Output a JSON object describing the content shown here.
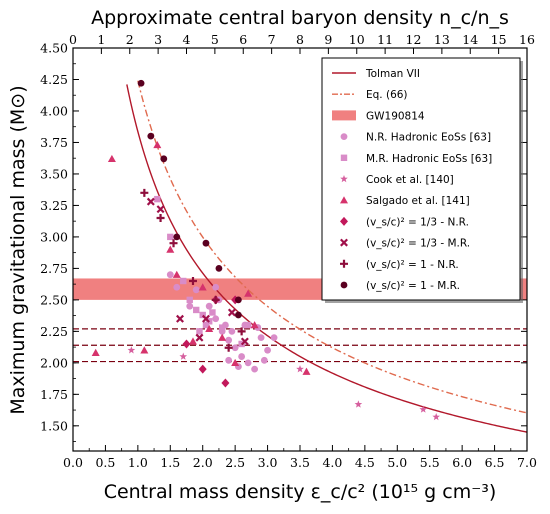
{
  "chart_data": {
    "type": "scatter",
    "xlabel": "Central mass density ε_c/c² (10¹⁵ g cm⁻³)",
    "ylabel": "Maximum gravitational mass (M⊙)",
    "top_xlabel": "Approximate central baryon density n_c/n_s",
    "xlim": [
      0.0,
      7.0
    ],
    "ylim": [
      1.3,
      4.5
    ],
    "top_xlim": [
      0,
      16
    ],
    "x_ticks": [
      "0.0",
      "0.5",
      "1.0",
      "1.5",
      "2.0",
      "2.5",
      "3.0",
      "3.5",
      "4.0",
      "4.5",
      "5.0",
      "5.5",
      "6.0",
      "6.5",
      "7.0"
    ],
    "y_ticks": [
      "1.50",
      "1.75",
      "2.00",
      "2.25",
      "2.50",
      "2.75",
      "3.00",
      "3.25",
      "3.50",
      "3.75",
      "4.00",
      "4.25",
      "4.50"
    ],
    "top_ticks": [
      "0",
      "1",
      "2",
      "3",
      "4",
      "5",
      "6",
      "7",
      "8",
      "9",
      "10",
      "11",
      "12",
      "13",
      "14",
      "15",
      "16"
    ],
    "grid": false,
    "legend_position": "top-right",
    "colors": {
      "tolman": "#b2182b",
      "eq66": "#e06a4e",
      "gw_band": "#f08080",
      "nr_hadronic": "#d98cc8",
      "mr_hadronic": "#d98cc8",
      "cook": "#d65f9e",
      "salgado": "#d6336c",
      "d_nr_13": "#c2185b",
      "d_mr_13": "#a0104a",
      "d_nr_1": "#8e0e3c",
      "d_mr_1": "#5a0020",
      "hline": "#7a0010"
    },
    "legend": [
      {
        "key": "tolman",
        "label": "Tolman VII",
        "marker": "line"
      },
      {
        "key": "eq66",
        "label": "Eq. (66)",
        "marker": "dashdot"
      },
      {
        "key": "gw_band",
        "label": "GW190814",
        "marker": "band"
      },
      {
        "key": "nr_hadronic",
        "label": "N.R. Hadronic EoSs [63]",
        "marker": "circle"
      },
      {
        "key": "mr_hadronic",
        "label": "M.R. Hadronic EoSs [63]",
        "marker": "square"
      },
      {
        "key": "cook",
        "label": "Cook et al. [140]",
        "marker": "star"
      },
      {
        "key": "salgado",
        "label": "Salgado et al. [141]",
        "marker": "triangle"
      },
      {
        "key": "d_nr_13",
        "label": "(v_s/c)² = 1/3 - N.R.",
        "marker": "diamond"
      },
      {
        "key": "d_mr_13",
        "label": "(v_s/c)² = 1/3 - M.R.",
        "marker": "x"
      },
      {
        "key": "d_nr_1",
        "label": "(v_s/c)² = 1 - N.R.",
        "marker": "plus"
      },
      {
        "key": "d_mr_1",
        "label": "(v_s/c)² = 1 - M.R.",
        "marker": "circle"
      }
    ],
    "gw190814_band": [
      2.5,
      2.67
    ],
    "horizontal_lines": [
      2.27,
      2.14,
      2.01
    ],
    "curves": [
      {
        "key": "tolman",
        "A": 3.836,
        "p": 0.5,
        "x_range": [
          0.83,
          7.0
        ]
      },
      {
        "key": "eq66",
        "A": 4.24,
        "p": 0.5,
        "x_range": [
          1.0,
          7.0
        ]
      }
    ],
    "series": [
      {
        "key": "nr_hadronic",
        "marker": "circle",
        "points": [
          [
            1.5,
            2.7
          ],
          [
            1.6,
            2.6
          ],
          [
            1.9,
            2.58
          ],
          [
            2.1,
            2.45
          ],
          [
            2.2,
            2.35
          ],
          [
            2.3,
            2.25
          ],
          [
            2.4,
            2.18
          ],
          [
            2.5,
            2.12
          ],
          [
            2.6,
            2.05
          ],
          [
            2.4,
            2.02
          ],
          [
            2.7,
            2.0
          ],
          [
            2.8,
            1.95
          ],
          [
            2.55,
            1.97
          ],
          [
            2.9,
            2.2
          ],
          [
            2.65,
            2.3
          ],
          [
            2.85,
            2.28
          ],
          [
            3.0,
            2.1
          ],
          [
            3.1,
            2.2
          ],
          [
            2.95,
            2.02
          ],
          [
            2.45,
            2.25
          ],
          [
            2.2,
            2.6
          ],
          [
            2.25,
            2.5
          ],
          [
            2.35,
            2.3
          ],
          [
            1.8,
            2.45
          ]
        ]
      },
      {
        "key": "mr_hadronic",
        "marker": "square",
        "points": [
          [
            1.3,
            3.3
          ],
          [
            1.5,
            3.0
          ],
          [
            1.7,
            2.65
          ],
          [
            1.8,
            2.5
          ],
          [
            1.9,
            2.42
          ],
          [
            2.0,
            2.38
          ],
          [
            2.05,
            2.3
          ],
          [
            2.1,
            2.33
          ],
          [
            2.15,
            2.4
          ],
          [
            2.3,
            2.28
          ],
          [
            1.95,
            2.25
          ],
          [
            2.6,
            2.15
          ],
          [
            2.7,
            2.3
          ]
        ]
      },
      {
        "key": "cook",
        "marker": "star",
        "points": [
          [
            0.9,
            2.1
          ],
          [
            1.7,
            2.05
          ],
          [
            3.5,
            1.95
          ],
          [
            4.4,
            1.67
          ],
          [
            5.4,
            1.63
          ],
          [
            5.6,
            1.57
          ]
        ]
      },
      {
        "key": "salgado",
        "marker": "triangle",
        "points": [
          [
            0.6,
            3.62
          ],
          [
            1.3,
            3.73
          ],
          [
            1.5,
            2.9
          ],
          [
            1.6,
            2.7
          ],
          [
            2.1,
            2.27
          ],
          [
            2.3,
            2.2
          ],
          [
            2.5,
            2.0
          ],
          [
            2.8,
            2.3
          ],
          [
            3.6,
            1.93
          ],
          [
            0.35,
            2.08
          ],
          [
            1.85,
            2.17
          ],
          [
            2.7,
            2.55
          ],
          [
            1.1,
            2.1
          ],
          [
            2.0,
            2.6
          ]
        ]
      },
      {
        "key": "d_nr_13",
        "marker": "diamond",
        "points": [
          [
            1.75,
            2.15
          ],
          [
            2.0,
            1.95
          ],
          [
            2.35,
            1.84
          ],
          [
            2.2,
            2.5
          ],
          [
            2.5,
            2.5
          ]
        ]
      },
      {
        "key": "d_mr_13",
        "marker": "x",
        "points": [
          [
            1.2,
            3.28
          ],
          [
            1.35,
            3.22
          ],
          [
            1.65,
            2.35
          ],
          [
            1.95,
            2.2
          ],
          [
            2.05,
            2.35
          ],
          [
            2.45,
            2.4
          ],
          [
            2.65,
            2.17
          ]
        ]
      },
      {
        "key": "d_nr_1",
        "marker": "plus",
        "points": [
          [
            1.1,
            3.35
          ],
          [
            1.35,
            3.15
          ],
          [
            1.55,
            2.95
          ],
          [
            1.85,
            2.65
          ],
          [
            2.2,
            2.5
          ],
          [
            2.6,
            2.25
          ],
          [
            2.4,
            2.12
          ]
        ]
      },
      {
        "key": "d_mr_1",
        "marker": "circle",
        "points": [
          [
            1.05,
            4.22
          ],
          [
            1.2,
            3.8
          ],
          [
            1.4,
            3.62
          ],
          [
            1.6,
            3.0
          ],
          [
            2.05,
            2.95
          ],
          [
            2.25,
            2.75
          ],
          [
            2.55,
            2.5
          ],
          [
            2.55,
            2.38
          ]
        ]
      }
    ]
  }
}
